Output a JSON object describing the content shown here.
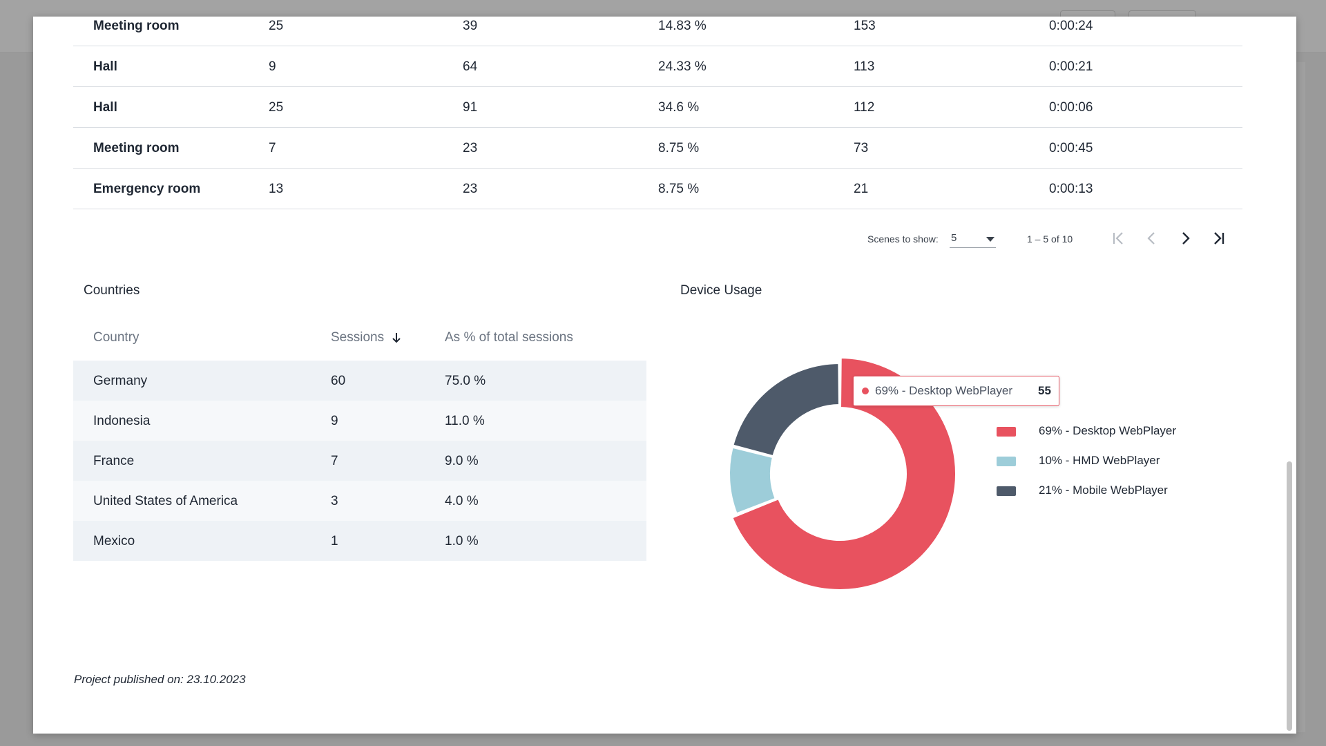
{
  "scene_table": {
    "rows": [
      [
        "Meeting room",
        "25",
        "39",
        "14.83 %",
        "153",
        "0:00:24"
      ],
      [
        "Hall",
        "9",
        "64",
        "24.33 %",
        "113",
        "0:00:21"
      ],
      [
        "Hall",
        "25",
        "91",
        "34.6 %",
        "112",
        "0:00:06"
      ],
      [
        "Meeting room",
        "7",
        "23",
        "8.75 %",
        "73",
        "0:00:45"
      ],
      [
        "Emergency room",
        "13",
        "23",
        "8.75 %",
        "21",
        "0:00:13"
      ]
    ]
  },
  "pager": {
    "label": "Scenes to show:",
    "page_size": "5",
    "range": "1 – 5 of 10"
  },
  "countries": {
    "title": "Countries",
    "headers": [
      "Country",
      "Sessions",
      "As % of total sessions"
    ],
    "rows": [
      [
        "Germany",
        "60",
        "75.0 %"
      ],
      [
        "Indonesia",
        "9",
        "11.0 %"
      ],
      [
        "France",
        "7",
        "9.0 %"
      ],
      [
        "United States of America",
        "3",
        "4.0 %"
      ],
      [
        "Mexico",
        "1",
        "1.0 %"
      ]
    ]
  },
  "device_usage": {
    "title": "Device Usage",
    "tooltip": {
      "label": "69% - Desktop WebPlayer",
      "value": "55",
      "color": "#e8525f"
    },
    "legend": [
      {
        "label": "69% - Desktop WebPlayer",
        "color": "#e8525f"
      },
      {
        "label": "10% - HMD WebPlayer",
        "color": "#9dcdd9"
      },
      {
        "label": "21% - Mobile WebPlayer",
        "color": "#4e5a6a"
      }
    ]
  },
  "chart_data": {
    "type": "pie",
    "title": "Device Usage",
    "categories": [
      "69% - Desktop WebPlayer",
      "10% - HMD WebPlayer",
      "21% - Mobile WebPlayer"
    ],
    "values": [
      69,
      10,
      21
    ],
    "colors": [
      "#e8525f",
      "#9dcdd9",
      "#4e5a6a"
    ],
    "legend": "right"
  },
  "footer": {
    "published": "Project published on: 23.10.2023"
  }
}
